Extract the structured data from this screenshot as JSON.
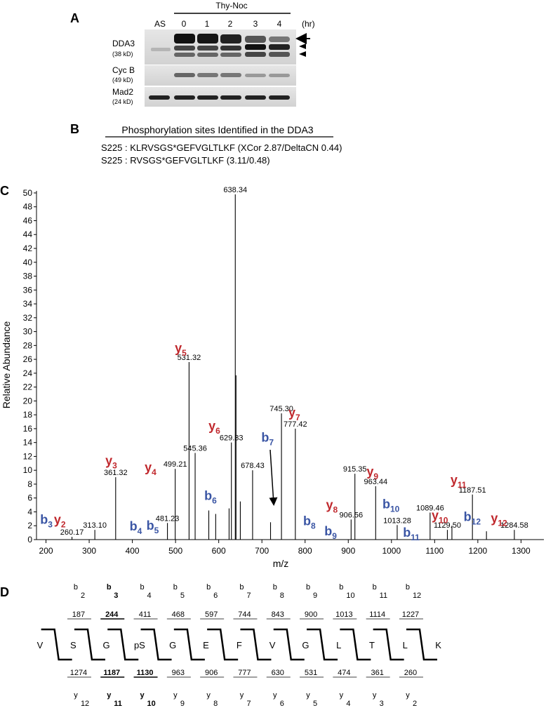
{
  "panel_a": {
    "label": "A",
    "lane_first": "AS",
    "treatment": "Thy-Noc",
    "times": [
      "0",
      "1",
      "2",
      "3",
      "4"
    ],
    "unit": "(hr)",
    "blots": [
      {
        "name": "DDA3",
        "size": "(38 kD)"
      },
      {
        "name": "Cyc B",
        "size": "(49 kD)"
      },
      {
        "name": "Mad2",
        "size": "(24 kD)"
      }
    ]
  },
  "panel_b": {
    "label": "B",
    "title": "Phosphorylation sites Identified in the DDA3",
    "lines": [
      "S225 : KLRVSGS*GEFVGLTLKF (XCor 2.87/DeltaCN 0.44)",
      "S225 : RVSGS*GEFVGLTLKF (3.11/0.48)"
    ]
  },
  "chart_data": {
    "type": "spectrum",
    "panel_label": "C",
    "xlabel": "m/z",
    "ylabel": "Relative Abundance",
    "x": [
      260.17,
      313.1,
      361.32,
      481.23,
      499.21,
      531.32,
      545.36,
      577,
      593,
      624,
      629.33,
      638.34,
      640,
      650,
      678.43,
      720,
      745.3,
      777.42,
      906.56,
      915.35,
      963.44,
      1013.28,
      1089.46,
      1129.5,
      1140,
      1187.51,
      1220,
      1284.58
    ],
    "x_labels": [
      "260.17",
      "313.10",
      "361.32",
      "481.23",
      "499.21",
      "531.32",
      "545.36",
      null,
      null,
      null,
      "629.33",
      "638.34",
      null,
      null,
      "678.43",
      null,
      "745.30",
      "777.42",
      "906.56",
      "915.35",
      "963.44",
      "1013.28",
      "1089.46",
      "1129.50",
      null,
      "1187.51",
      null,
      "1284.58"
    ],
    "values": [
      0.4,
      1.4,
      9,
      2.4,
      10.2,
      25.6,
      12.5,
      4.2,
      3.7,
      4.5,
      14,
      49.8,
      23.7,
      5.5,
      10,
      2.5,
      18.2,
      16,
      2.9,
      9.5,
      7.7,
      2.1,
      3.9,
      1.4,
      2,
      6.5,
      1.2,
      1.4
    ],
    "color": "#000000",
    "xlim": [
      178,
      1353
    ],
    "ylim": [
      0,
      50.3
    ],
    "xticks": [
      200,
      300,
      400,
      500,
      600,
      700,
      800,
      900,
      1000,
      1100,
      1200,
      1300
    ],
    "yticks": [
      0,
      2,
      4,
      6,
      8,
      10,
      12,
      14,
      16,
      18,
      20,
      22,
      24,
      26,
      28,
      30,
      32,
      34,
      36,
      38,
      40,
      42,
      44,
      46,
      48,
      50
    ],
    "ions": [
      {
        "ion": "b",
        "sub": "3",
        "x": 201,
        "y": 2.3
      },
      {
        "ion": "y",
        "sub": "2",
        "x": 232,
        "y": 2.3
      },
      {
        "ion": "y",
        "sub": "3",
        "x": 351,
        "y": 10.8
      },
      {
        "ion": "b",
        "sub": "4",
        "x": 408,
        "y": 1.3
      },
      {
        "ion": "y",
        "sub": "4",
        "x": 442,
        "y": 9.8
      },
      {
        "ion": "b",
        "sub": "5",
        "x": 447,
        "y": 1.4
      },
      {
        "ion": "y",
        "sub": "5",
        "x": 512,
        "y": 27
      },
      {
        "ion": "b",
        "sub": "6",
        "x": 581,
        "y": 5.7
      },
      {
        "ion": "y",
        "sub": "6",
        "x": 590,
        "y": 15.8
      },
      {
        "ion": "b",
        "sub": "7",
        "x": 713,
        "y": 14.1
      },
      {
        "ion": "y",
        "sub": "7",
        "x": 775,
        "y": 17.7
      },
      {
        "ion": "b",
        "sub": "8",
        "x": 810,
        "y": 2.1
      },
      {
        "ion": "y",
        "sub": "8",
        "x": 862,
        "y": 4.4
      },
      {
        "ion": "b",
        "sub": "9",
        "x": 859,
        "y": 0.6
      },
      {
        "ion": "y",
        "sub": "9",
        "x": 956,
        "y": 9.2
      },
      {
        "ion": "b",
        "sub": "10",
        "x": 999,
        "y": 4.5
      },
      {
        "ion": "b",
        "sub": "11",
        "x": 1046,
        "y": 0.4
      },
      {
        "ion": "y",
        "sub": "10",
        "x": 1112,
        "y": 2.9
      },
      {
        "ion": "y",
        "sub": "11",
        "x": 1155,
        "y": 8
      },
      {
        "ion": "b",
        "sub": "12",
        "x": 1187,
        "y": 2.7
      },
      {
        "ion": "y",
        "sub": "12",
        "x": 1249,
        "y": 2.5
      }
    ]
  },
  "panel_d": {
    "label": "D",
    "residues": [
      "V",
      "S",
      "G",
      "pS",
      "G",
      "E",
      "F",
      "V",
      "G",
      "L",
      "T",
      "L",
      "K"
    ],
    "b_ions": [
      {
        "ion": "b",
        "sub": "2",
        "mass": 187,
        "bold": false
      },
      {
        "ion": "b",
        "sub": "3",
        "mass": 244,
        "bold": true
      },
      {
        "ion": "b",
        "sub": "4",
        "mass": 411,
        "bold": false
      },
      {
        "ion": "b",
        "sub": "5",
        "mass": 468,
        "bold": false
      },
      {
        "ion": "b",
        "sub": "6",
        "mass": 597,
        "bold": false
      },
      {
        "ion": "b",
        "sub": "7",
        "mass": 744,
        "bold": false
      },
      {
        "ion": "b",
        "sub": "8",
        "mass": 843,
        "bold": false
      },
      {
        "ion": "b",
        "sub": "9",
        "mass": 900,
        "bold": false
      },
      {
        "ion": "b",
        "sub": "10",
        "mass": 1013,
        "bold": false
      },
      {
        "ion": "b",
        "sub": "11",
        "mass": 1114,
        "bold": false
      },
      {
        "ion": "b",
        "sub": "12",
        "mass": 1227,
        "bold": false
      }
    ],
    "y_ions": [
      {
        "ion": "y",
        "sub": "12",
        "mass": 1274,
        "bold": false
      },
      {
        "ion": "y",
        "sub": "11",
        "mass": 1187,
        "bold": true
      },
      {
        "ion": "y",
        "sub": "10",
        "mass": 1130,
        "bold": true
      },
      {
        "ion": "y",
        "sub": "9",
        "mass": 963,
        "bold": false
      },
      {
        "ion": "y",
        "sub": "8",
        "mass": 906,
        "bold": false
      },
      {
        "ion": "y",
        "sub": "7",
        "mass": 777,
        "bold": false
      },
      {
        "ion": "y",
        "sub": "6",
        "mass": 630,
        "bold": false
      },
      {
        "ion": "y",
        "sub": "5",
        "mass": 531,
        "bold": false
      },
      {
        "ion": "y",
        "sub": "4",
        "mass": 474,
        "bold": false
      },
      {
        "ion": "y",
        "sub": "3",
        "mass": 361,
        "bold": false
      },
      {
        "ion": "y",
        "sub": "2",
        "mass": 260,
        "bold": false
      }
    ]
  }
}
